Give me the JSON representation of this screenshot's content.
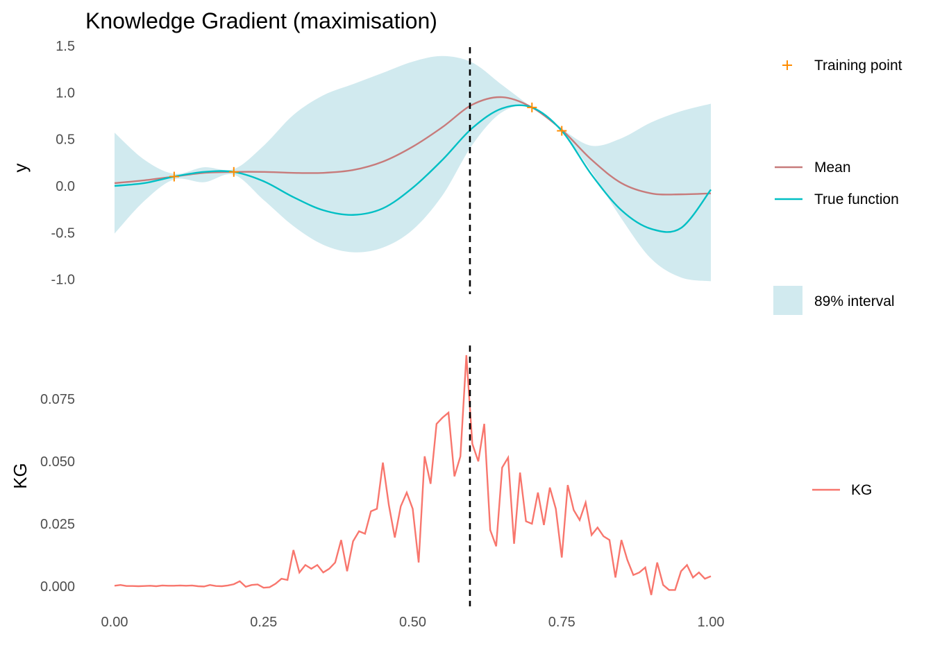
{
  "title": "Knowledge Gradient (maximisation)",
  "colors": {
    "mean": "#c77b7b",
    "true_function": "#00bfc4",
    "interval": "#d1eaef",
    "training_point": "#ff8c00",
    "kg": "#f8766d",
    "vline": "#000000"
  },
  "legend": {
    "training_point": "Training point",
    "mean": "Mean",
    "true_function": "True function",
    "interval": "89% interval",
    "kg": "KG"
  },
  "chart_data": [
    {
      "type": "line",
      "panel": "top",
      "ylabel": "y",
      "xlim": [
        0,
        1
      ],
      "ylim": [
        -1.1,
        1.5
      ],
      "yticks": [
        1.5,
        1.0,
        0.5,
        0.0,
        -0.5,
        -1.0
      ],
      "ytick_labels": [
        "1.5",
        "1.0",
        "0.5",
        "0.0",
        "-0.5",
        "-1.0"
      ],
      "grid": false,
      "vline_x": 0.596,
      "training_points": {
        "x": [
          0.1,
          0.2,
          0.7,
          0.75
        ],
        "y": [
          0.1,
          0.15,
          0.84,
          0.59
        ]
      },
      "series": [
        {
          "name": "Mean",
          "x": [
            0,
            0.05,
            0.1,
            0.15,
            0.2,
            0.25,
            0.3,
            0.35,
            0.4,
            0.45,
            0.5,
            0.55,
            0.6,
            0.65,
            0.7,
            0.75,
            0.8,
            0.85,
            0.9,
            0.95,
            1.0
          ],
          "y": [
            0.03,
            0.06,
            0.1,
            0.14,
            0.15,
            0.15,
            0.14,
            0.14,
            0.17,
            0.26,
            0.42,
            0.63,
            0.87,
            0.95,
            0.84,
            0.6,
            0.28,
            0.03,
            -0.08,
            -0.09,
            -0.08
          ]
        },
        {
          "name": "True function",
          "x": [
            0,
            0.05,
            0.1,
            0.15,
            0.2,
            0.25,
            0.3,
            0.35,
            0.4,
            0.45,
            0.5,
            0.55,
            0.6,
            0.65,
            0.7,
            0.75,
            0.8,
            0.85,
            0.9,
            0.95,
            1.0
          ],
          "y": [
            0.0,
            0.03,
            0.1,
            0.15,
            0.15,
            0.05,
            -0.12,
            -0.26,
            -0.31,
            -0.24,
            -0.02,
            0.28,
            0.62,
            0.83,
            0.84,
            0.59,
            0.12,
            -0.26,
            -0.46,
            -0.45,
            -0.04
          ]
        }
      ],
      "interval": {
        "name": "89% interval",
        "x": [
          0,
          0.05,
          0.1,
          0.15,
          0.2,
          0.25,
          0.3,
          0.35,
          0.4,
          0.45,
          0.5,
          0.55,
          0.6,
          0.65,
          0.7,
          0.75,
          0.8,
          0.85,
          0.9,
          0.95,
          1.0
        ],
        "lower": [
          -0.51,
          -0.16,
          0.07,
          0.04,
          0.12,
          -0.15,
          -0.43,
          -0.63,
          -0.71,
          -0.66,
          -0.47,
          -0.1,
          0.44,
          0.79,
          0.84,
          0.58,
          0.15,
          -0.35,
          -0.78,
          -0.98,
          -1.02
        ],
        "upper": [
          0.57,
          0.28,
          0.13,
          0.2,
          0.18,
          0.43,
          0.76,
          0.97,
          1.09,
          1.21,
          1.33,
          1.39,
          1.32,
          1.08,
          0.84,
          0.61,
          0.43,
          0.51,
          0.68,
          0.8,
          0.88
        ]
      }
    },
    {
      "type": "line",
      "panel": "bottom",
      "ylabel": "KG",
      "xlim": [
        0,
        1
      ],
      "ylim": [
        -0.008,
        0.095
      ],
      "yticks": [
        0.075,
        0.05,
        0.025,
        0.0
      ],
      "ytick_labels": [
        "0.075",
        "0.050",
        "0.025",
        "0.000"
      ],
      "xticks": [
        0.0,
        0.25,
        0.5,
        0.75,
        1.0
      ],
      "xtick_labels": [
        "0.00",
        "0.25",
        "0.50",
        "0.75",
        "1.00"
      ],
      "grid": false,
      "vline_x": 0.596,
      "series": [
        {
          "name": "KG",
          "x": [
            0.0,
            0.01,
            0.02,
            0.03,
            0.04,
            0.05,
            0.06,
            0.07,
            0.08,
            0.09,
            0.1,
            0.11,
            0.12,
            0.13,
            0.14,
            0.15,
            0.16,
            0.17,
            0.18,
            0.19,
            0.2,
            0.21,
            0.22,
            0.23,
            0.24,
            0.25,
            0.26,
            0.27,
            0.28,
            0.29,
            0.3,
            0.31,
            0.32,
            0.33,
            0.34,
            0.35,
            0.36,
            0.37,
            0.38,
            0.39,
            0.4,
            0.41,
            0.42,
            0.43,
            0.44,
            0.45,
            0.46,
            0.47,
            0.48,
            0.49,
            0.5,
            0.51,
            0.52,
            0.53,
            0.54,
            0.55,
            0.56,
            0.57,
            0.58,
            0.59,
            0.6,
            0.61,
            0.62,
            0.63,
            0.64,
            0.65,
            0.66,
            0.67,
            0.68,
            0.69,
            0.7,
            0.71,
            0.72,
            0.73,
            0.74,
            0.75,
            0.76,
            0.77,
            0.78,
            0.79,
            0.8,
            0.81,
            0.82,
            0.83,
            0.84,
            0.85,
            0.86,
            0.87,
            0.88,
            0.89,
            0.9,
            0.91,
            0.92,
            0.93,
            0.94,
            0.95,
            0.96,
            0.97,
            0.98,
            0.99,
            1.0
          ],
          "y": [
            0.0002,
            0.0005,
            0.0001,
            0.0001,
            0.0,
            0.0001,
            0.0002,
            0.0,
            0.0003,
            0.0002,
            0.0002,
            0.0003,
            0.0002,
            0.0003,
            0.0,
            -0.0001,
            0.0005,
            0.0001,
            0.0,
            0.0003,
            0.0008,
            0.002,
            -0.0002,
            0.0005,
            0.0007,
            -0.0006,
            -0.0004,
            0.001,
            0.003,
            0.0025,
            0.0145,
            0.0055,
            0.0085,
            0.007,
            0.0085,
            0.0055,
            0.007,
            0.0095,
            0.0185,
            0.006,
            0.018,
            0.022,
            0.021,
            0.03,
            0.031,
            0.0495,
            0.0325,
            0.0195,
            0.032,
            0.0375,
            0.031,
            0.0095,
            0.052,
            0.041,
            0.065,
            0.0675,
            0.0695,
            0.044,
            0.052,
            0.0925,
            0.057,
            0.05,
            0.065,
            0.0225,
            0.016,
            0.0475,
            0.0515,
            0.017,
            0.0455,
            0.026,
            0.025,
            0.0375,
            0.0245,
            0.0395,
            0.031,
            0.0115,
            0.0405,
            0.0305,
            0.0265,
            0.0335,
            0.0205,
            0.0235,
            0.02,
            0.0185,
            0.0035,
            0.0185,
            0.0105,
            0.0045,
            0.0055,
            0.0075,
            -0.0035,
            0.0095,
            0.0005,
            -0.0015,
            -0.0015,
            0.006,
            0.0085,
            0.0035,
            0.0055,
            0.003,
            0.004
          ]
        }
      ]
    }
  ]
}
